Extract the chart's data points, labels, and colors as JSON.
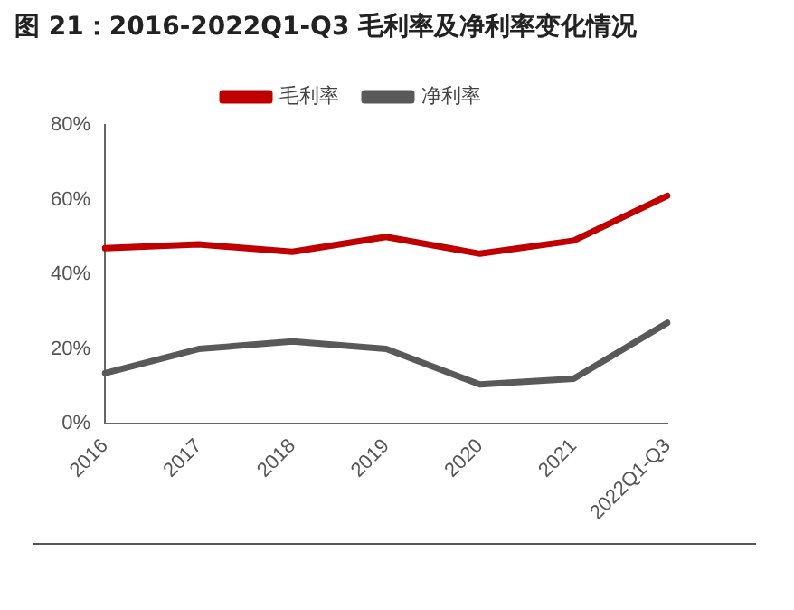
{
  "chart_data": {
    "type": "line",
    "title": "图 21：2016-2022Q1-Q3 毛利率及净利率变化情况",
    "categories": [
      "2016",
      "2017",
      "2018",
      "2019",
      "2020",
      "2021",
      "2022Q1-Q3"
    ],
    "series": [
      {
        "name": "毛利率",
        "color": "#c00000",
        "values": [
          47,
          48,
          46,
          50,
          45.5,
          49,
          61
        ]
      },
      {
        "name": "净利率",
        "color": "#595959",
        "values": [
          13.5,
          20,
          22,
          20,
          10.5,
          12,
          27
        ]
      }
    ],
    "ylim": [
      0,
      80
    ],
    "yticks": [
      {
        "value": 0,
        "label": "0%"
      },
      {
        "value": 20,
        "label": "20%"
      },
      {
        "value": 40,
        "label": "40%"
      },
      {
        "value": 60,
        "label": "60%"
      },
      {
        "value": 80,
        "label": "80%"
      }
    ],
    "grid": false,
    "legend": "top",
    "marker": "none",
    "line_style": "solid"
  }
}
